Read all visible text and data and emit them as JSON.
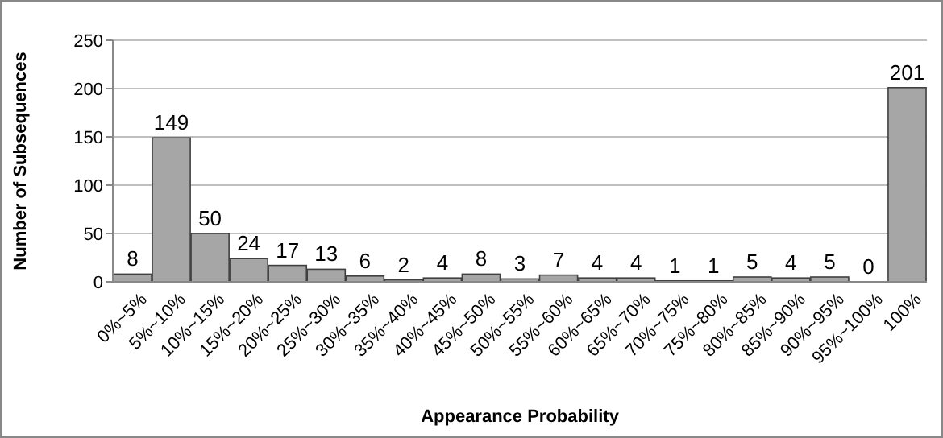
{
  "chart_data": {
    "type": "bar",
    "xlabel": "Appearance Probability",
    "ylabel": "Number of Subsequences",
    "categories": [
      "0%~5%",
      "5%~10%",
      "10%~15%",
      "15%~20%",
      "20%~25%",
      "25%~30%",
      "30%~35%",
      "35%~40%",
      "40%~45%",
      "45%~50%",
      "50%~55%",
      "55%~60%",
      "60%~65%",
      "65%~70%",
      "70%~75%",
      "75%~80%",
      "80%~85%",
      "85%~90%",
      "90%~95%",
      "95%~100%",
      "100%"
    ],
    "values": [
      8,
      149,
      50,
      24,
      17,
      13,
      6,
      2,
      4,
      8,
      3,
      7,
      4,
      4,
      1,
      1,
      5,
      4,
      5,
      0,
      201
    ],
    "color": "#a6a6a6",
    "ylim": [
      0,
      250
    ],
    "yticks": [
      0,
      50,
      100,
      150,
      200,
      250
    ],
    "grid": "y",
    "data_labels": true
  }
}
